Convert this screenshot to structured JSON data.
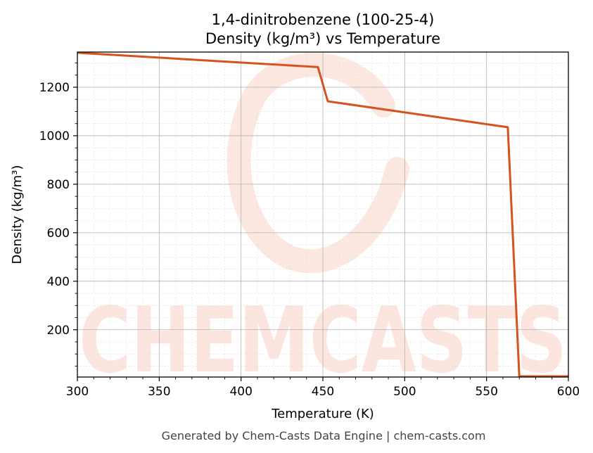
{
  "chart_data": {
    "type": "line",
    "title": "1,4-dinitrobenzene (100-25-4)",
    "subtitle": "Density (kg/m³) vs Temperature",
    "xlabel": "Temperature (K)",
    "ylabel": "Density (kg/m³)",
    "xlim": [
      300,
      600
    ],
    "ylim": [
      5,
      1345
    ],
    "x_ticks": [
      300,
      350,
      400,
      450,
      500,
      550,
      600
    ],
    "y_ticks": [
      200,
      400,
      600,
      800,
      1000,
      1200
    ],
    "grid": true,
    "minor_grid": true,
    "series": [
      {
        "color": "#d4531f",
        "x": [
          300,
          447,
          453,
          563,
          570,
          600
        ],
        "y": [
          1342,
          1283,
          1142,
          1035,
          8,
          8
        ]
      }
    ]
  },
  "watermark": {
    "text": "CHEMCASTS",
    "color": "#fde3dc"
  },
  "footer": "Generated by Chem-Casts Data Engine | chem-casts.com"
}
